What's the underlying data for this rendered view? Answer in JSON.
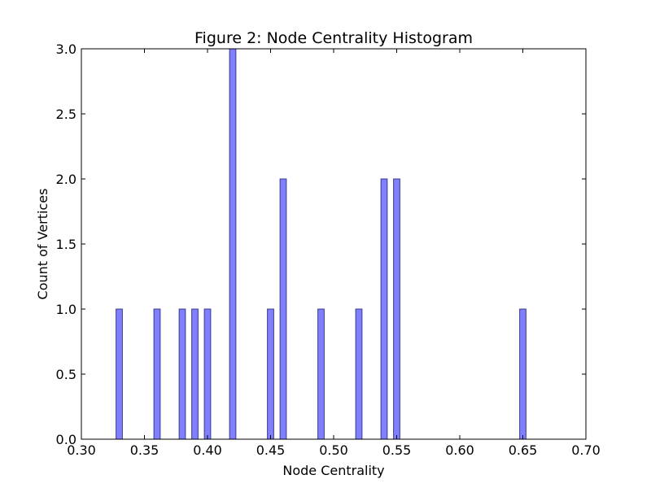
{
  "chart_data": {
    "type": "bar",
    "title": "Figure 2: Node Centrality Histogram",
    "xlabel": "Node Centrality",
    "ylabel": "Count of Vertices",
    "xlim": [
      0.3,
      0.7
    ],
    "ylim": [
      0.0,
      3.0
    ],
    "x_ticks": [
      "0.30",
      "0.35",
      "0.40",
      "0.45",
      "0.50",
      "0.55",
      "0.60",
      "0.65",
      "0.70"
    ],
    "y_ticks": [
      "0.0",
      "0.5",
      "1.0",
      "1.5",
      "2.0",
      "2.5",
      "3.0"
    ],
    "grid": false,
    "bar_width": 0.005,
    "bar_color": "#8080ff",
    "bar_edge_color": "#3a3a8c",
    "x": [
      0.33,
      0.36,
      0.38,
      0.39,
      0.4,
      0.42,
      0.45,
      0.46,
      0.49,
      0.52,
      0.54,
      0.55,
      0.65
    ],
    "values": [
      1,
      1,
      1,
      1,
      1,
      3,
      1,
      2,
      1,
      1,
      2,
      2,
      1
    ]
  }
}
